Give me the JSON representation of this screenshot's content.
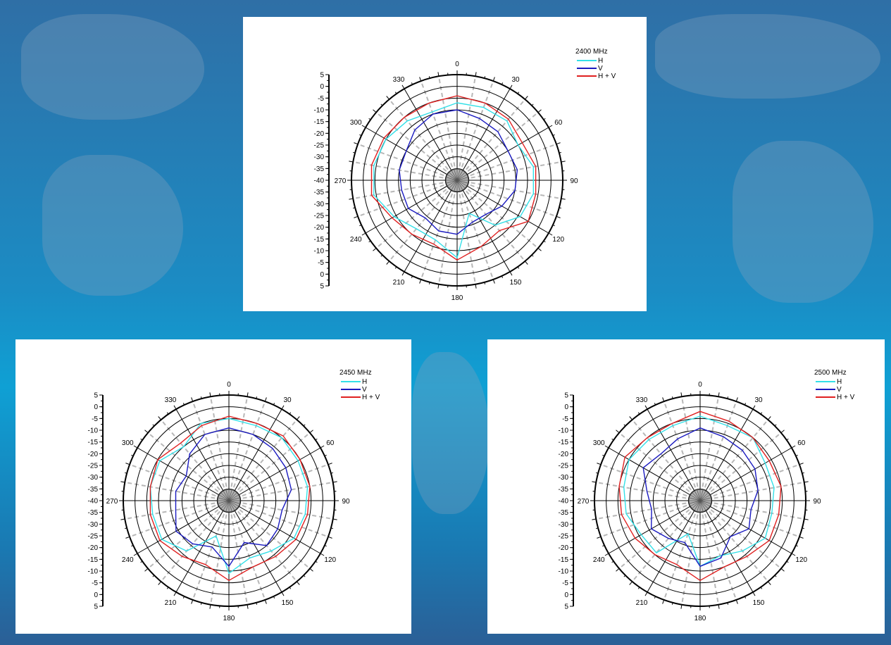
{
  "angle_labels": [
    "0",
    "30",
    "60",
    "90",
    "120",
    "150",
    "180",
    "210",
    "240",
    "270",
    "300",
    "330"
  ],
  "radial_labels": [
    "5",
    "0",
    "-5",
    "-10",
    "-15",
    "-20",
    "-25",
    "-30",
    "-35",
    "-40",
    "-35",
    "-30",
    "-25",
    "-20",
    "-15",
    "-10",
    "-5",
    "0",
    "5"
  ],
  "legend": {
    "h_label": "H",
    "v_label": "V",
    "hv_label": "H + V"
  },
  "colors": {
    "H": "#33e0e8",
    "V": "#1a1ac0",
    "H+V": "#e02020"
  },
  "chart_data": [
    {
      "type": "polar-line",
      "title": "2400 MHz",
      "theta_unit": "degrees",
      "r_range": [
        -40,
        5
      ],
      "theta": [
        0,
        20,
        40,
        60,
        80,
        100,
        120,
        140,
        160,
        180,
        200,
        220,
        240,
        260,
        280,
        300,
        320,
        340
      ],
      "series": [
        {
          "name": "H",
          "values": [
            -7,
            -7,
            -7,
            -10,
            -7,
            -7,
            -9,
            -15,
            -25,
            -7,
            -13,
            -13,
            -9,
            -4,
            -4,
            -5,
            -7,
            -9
          ]
        },
        {
          "name": "V",
          "values": [
            -10,
            -12,
            -13,
            -15,
            -14,
            -15,
            -18,
            -21,
            -21,
            -17,
            -17,
            -19,
            -16,
            -16,
            -15,
            -15,
            -12,
            -10
          ]
        },
        {
          "name": "H+V",
          "values": [
            -4,
            -5,
            -6,
            -8,
            -6,
            -6,
            -5,
            -12,
            -10,
            -6,
            -11,
            -10,
            -8,
            -3,
            -3,
            -4,
            -5,
            -5
          ]
        }
      ]
    },
    {
      "type": "polar-line",
      "title": "2450 MHz",
      "theta_unit": "degrees",
      "r_range": [
        -40,
        5
      ],
      "theta": [
        0,
        20,
        40,
        60,
        80,
        100,
        120,
        140,
        160,
        180,
        200,
        220,
        240,
        260,
        280,
        300,
        320,
        340
      ],
      "series": [
        {
          "name": "H",
          "values": [
            -5,
            -6,
            -5,
            -6,
            -6,
            -7,
            -8,
            -12,
            -14,
            -9,
            -24,
            -12,
            -7,
            -7,
            -6,
            -6,
            -10,
            -5
          ]
        },
        {
          "name": "V",
          "values": [
            -9,
            -10,
            -11,
            -12,
            -13,
            -17,
            -16,
            -15,
            -21,
            -12,
            -19,
            -16,
            -14,
            -17,
            -17,
            -19,
            -14,
            -10
          ]
        },
        {
          "name": "H+V",
          "values": [
            -4,
            -5,
            -4,
            -5,
            -5,
            -6,
            -7,
            -9,
            -10,
            -6,
            -11,
            -9,
            -6,
            -6,
            -6,
            -5,
            -8,
            -6
          ]
        }
      ]
    },
    {
      "type": "polar-line",
      "title": "2500 MHz",
      "theta_unit": "degrees",
      "r_range": [
        -40,
        5
      ],
      "theta": [
        0,
        20,
        40,
        60,
        80,
        100,
        120,
        140,
        160,
        180,
        200,
        220,
        240,
        260,
        280,
        300,
        320,
        340
      ],
      "series": [
        {
          "name": "H",
          "values": [
            -4,
            -6,
            -5,
            -8,
            -8,
            -9,
            -8,
            -12,
            -15,
            -12,
            -25,
            -11,
            -11,
            -8,
            -7,
            -5,
            -6,
            -6
          ]
        },
        {
          "name": "V",
          "values": [
            -9,
            -11,
            -12,
            -13,
            -15,
            -18,
            -16,
            -20,
            -14,
            -12,
            -21,
            -19,
            -16,
            -19,
            -17,
            -12,
            -14,
            -12
          ]
        },
        {
          "name": "H+V",
          "values": [
            -2,
            -4,
            -5,
            -6,
            -5,
            -6,
            -6,
            -9,
            -10,
            -6,
            -11,
            -10,
            -8,
            -6,
            -5,
            -3,
            -5,
            -5
          ]
        }
      ]
    }
  ]
}
